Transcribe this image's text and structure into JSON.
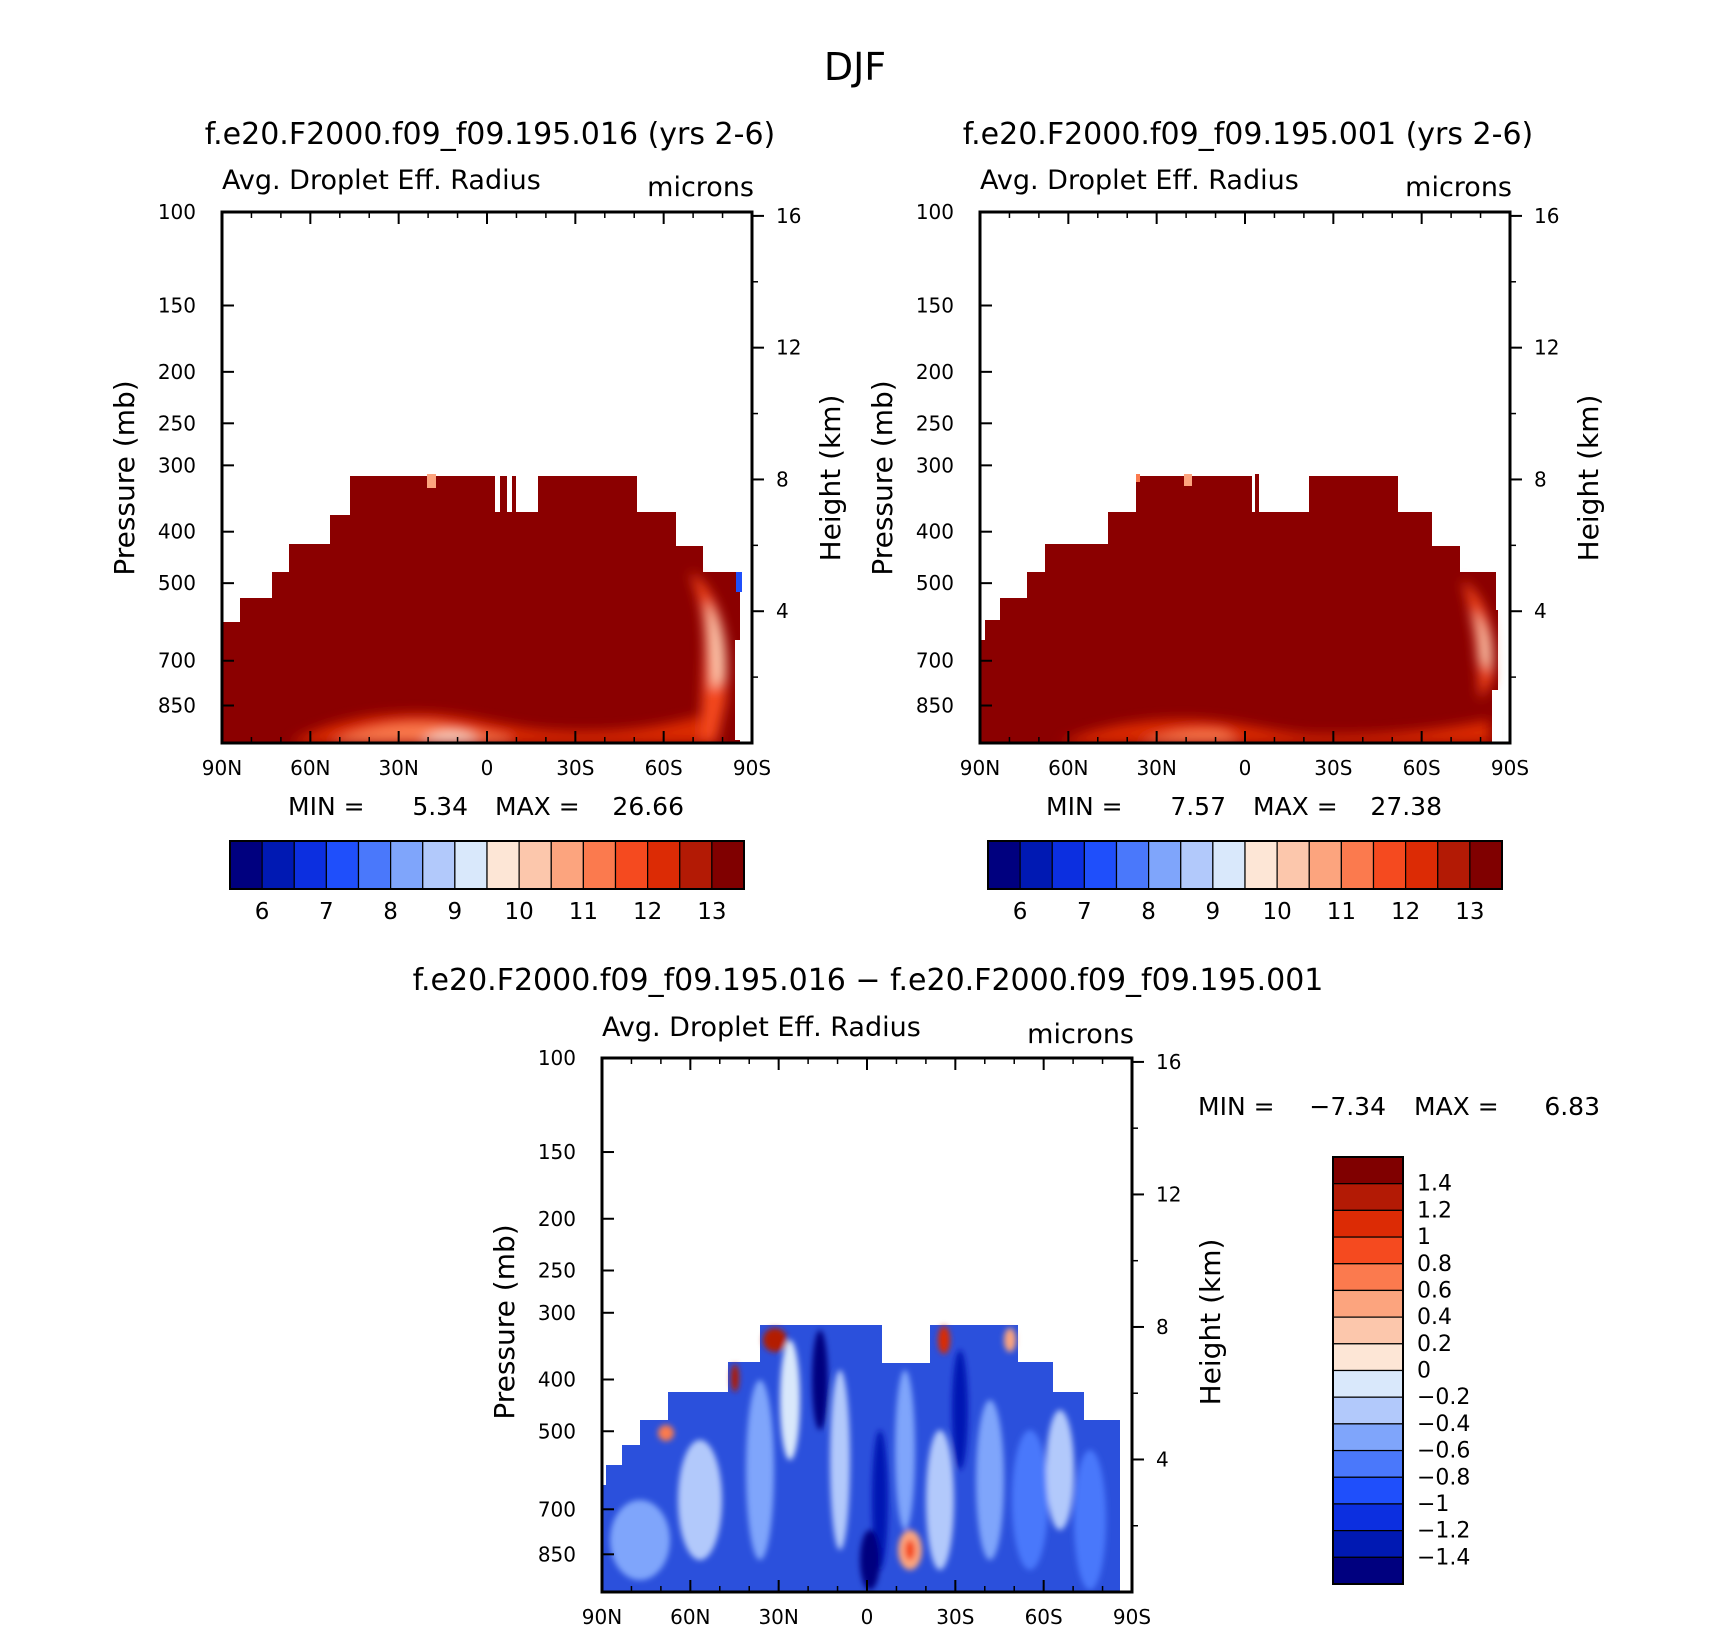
{
  "page_title": "DJF",
  "chart_data": [
    {
      "type": "heatmap",
      "title": "f.e20.F2000.f09_f09.195.016 (yrs 2-6)",
      "variable": "Avg. Droplet Eff. Radius",
      "units": "microns",
      "ylabel": "Pressure (mb)",
      "y2label": "Height (km)",
      "x_ticks": [
        "90N",
        "60N",
        "30N",
        "0",
        "30S",
        "60S",
        "90S"
      ],
      "y_ticks": [
        "100",
        "150",
        "200",
        "250",
        "300",
        "400",
        "500",
        "700",
        "850"
      ],
      "y2_ticks": [
        "16",
        "12",
        "8",
        "4"
      ],
      "min_label": "MIN =",
      "min_value": "5.34",
      "max_label": "MAX =",
      "max_value": "26.66",
      "colorbar_ticks": [
        "6",
        "7",
        "8",
        "9",
        "10",
        "11",
        "12",
        "13"
      ],
      "ylim": [
        100,
        1000
      ],
      "xlim": [
        90,
        -90
      ]
    },
    {
      "type": "heatmap",
      "title": "f.e20.F2000.f09_f09.195.001 (yrs 2-6)",
      "variable": "Avg. Droplet Eff. Radius",
      "units": "microns",
      "ylabel": "Pressure (mb)",
      "y2label": "Height (km)",
      "x_ticks": [
        "90N",
        "60N",
        "30N",
        "0",
        "30S",
        "60S",
        "90S"
      ],
      "y_ticks": [
        "100",
        "150",
        "200",
        "250",
        "300",
        "400",
        "500",
        "700",
        "850"
      ],
      "y2_ticks": [
        "16",
        "12",
        "8",
        "4"
      ],
      "min_label": "MIN =",
      "min_value": "7.57",
      "max_label": "MAX =",
      "max_value": "27.38",
      "colorbar_ticks": [
        "6",
        "7",
        "8",
        "9",
        "10",
        "11",
        "12",
        "13"
      ],
      "ylim": [
        100,
        1000
      ],
      "xlim": [
        90,
        -90
      ]
    },
    {
      "type": "heatmap",
      "title": "f.e20.F2000.f09_f09.195.016 − f.e20.F2000.f09_f09.195.001",
      "variable": "Avg. Droplet Eff. Radius",
      "units": "microns",
      "ylabel": "Pressure (mb)",
      "y2label": "Height (km)",
      "x_ticks": [
        "90N",
        "60N",
        "30N",
        "0",
        "30S",
        "60S",
        "90S"
      ],
      "y_ticks": [
        "100",
        "150",
        "200",
        "250",
        "300",
        "400",
        "500",
        "700",
        "850"
      ],
      "y2_ticks": [
        "16",
        "12",
        "8",
        "4"
      ],
      "min_label": "MIN =",
      "min_value": "−7.34",
      "max_label": "MAX =",
      "max_value": "6.83",
      "colorbar_ticks": [
        "1.4",
        "1.2",
        "1",
        "0.8",
        "0.6",
        "0.4",
        "0.2",
        "0",
        "−0.2",
        "−0.4",
        "−0.6",
        "−0.8",
        "−1",
        "−1.2",
        "−1.4"
      ],
      "ylim": [
        100,
        1000
      ],
      "xlim": [
        90,
        -90
      ]
    }
  ],
  "colors": {
    "abs_scale": [
      "#00007f",
      "#0019b3",
      "#0c2fe0",
      "#1f4ffb",
      "#4a78fb",
      "#7fa5fb",
      "#b2c9fb",
      "#d9e8fb",
      "#fde6d6",
      "#fcc7ac",
      "#fca47e",
      "#fb7a4e",
      "#f54a1f",
      "#dc2b05",
      "#b31a05",
      "#800000"
    ],
    "diff_scale": [
      "#800000",
      "#b31a05",
      "#dc2b05",
      "#f54a1f",
      "#fb7a4e",
      "#fca47e",
      "#fcc7ac",
      "#fde6d6",
      "#d9e8fb",
      "#b2c9fb",
      "#7fa5fb",
      "#4a78fb",
      "#1f4ffb",
      "#0c2fe0",
      "#0019b3",
      "#00007f"
    ],
    "mask_base": "#8b0000",
    "diff_base": "#2b50dc"
  }
}
